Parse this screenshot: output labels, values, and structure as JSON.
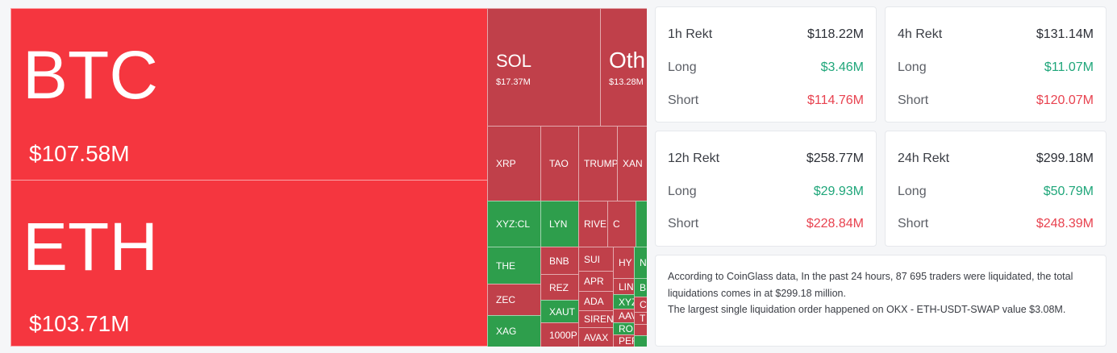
{
  "treemap": {
    "btc": {
      "symbol": "BTC",
      "value": "$107.58M"
    },
    "eth": {
      "symbol": "ETH",
      "value": "$103.71M"
    },
    "sol": {
      "symbol": "SOL",
      "value": "$17.37M"
    },
    "other": {
      "symbol": "Oth",
      "value": "$13.28M"
    },
    "tiles": {
      "xrp": "XRP",
      "tao": "TAO",
      "trump": "TRUMP",
      "xan": "XAN",
      "xyzcl": "XYZ:CL",
      "lyn": "LYN",
      "river": "RIVE",
      "c": "C",
      "the": "THE",
      "bnb": "BNB",
      "sui": "SUI",
      "hy": "HY",
      "n": "N",
      "rez": "REZ",
      "apr": "APR",
      "lin": "LIN",
      "b": "B",
      "zec": "ZEC",
      "xaut": "XAUT",
      "ada": "ADA",
      "xyz": "XYZ",
      "c2": "C",
      "siren": "SIREN",
      "aav": "AAV",
      "t": "T",
      "xag": "XAG",
      "k1000p": "1000P",
      "avax": "AVAX",
      "ro": "RO",
      "per": "PER"
    }
  },
  "stats": [
    {
      "title": "1h Rekt",
      "total": "$118.22M",
      "long_label": "Long",
      "long": "$3.46M",
      "short_label": "Short",
      "short": "$114.76M"
    },
    {
      "title": "4h Rekt",
      "total": "$131.14M",
      "long_label": "Long",
      "long": "$11.07M",
      "short_label": "Short",
      "short": "$120.07M"
    },
    {
      "title": "12h Rekt",
      "total": "$258.77M",
      "long_label": "Long",
      "long": "$29.93M",
      "short_label": "Short",
      "short": "$228.84M"
    },
    {
      "title": "24h Rekt",
      "total": "$299.18M",
      "long_label": "Long",
      "long": "$50.79M",
      "short_label": "Short",
      "short": "$248.39M"
    }
  ],
  "info": {
    "line1": "According to CoinGlass data, In the past 24 hours, 87 695 traders were liquidated, the total liquidations comes in at $299.18 million.",
    "line2": "The largest single liquidation order happened on OKX - ETH-USDT-SWAP value $3.08M."
  },
  "colors": {
    "long": "#1fa67a",
    "short": "#e8424f",
    "tile_big": "#f5363f",
    "tile_red": "#c0404a",
    "tile_green": "#2e9e4c"
  }
}
